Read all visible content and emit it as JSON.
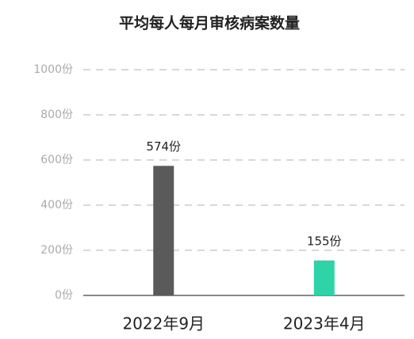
{
  "chart_data": {
    "type": "bar",
    "title": "平均每人每月审核病案数量",
    "categories": [
      "2022年9月",
      "2023年4月"
    ],
    "values": [
      574,
      155
    ],
    "value_labels": [
      "574份",
      "155份"
    ],
    "colors": [
      "#5a5a5a",
      "#2fd3a8"
    ],
    "ylim": [
      0,
      1000
    ],
    "yticks": [
      {
        "value": 0,
        "label": "0份"
      },
      {
        "value": 200,
        "label": "200份"
      },
      {
        "value": 400,
        "label": "400份"
      },
      {
        "value": 600,
        "label": "600份"
      },
      {
        "value": 800,
        "label": "800份"
      },
      {
        "value": 1000,
        "label": "1000份"
      }
    ],
    "grid": true
  }
}
